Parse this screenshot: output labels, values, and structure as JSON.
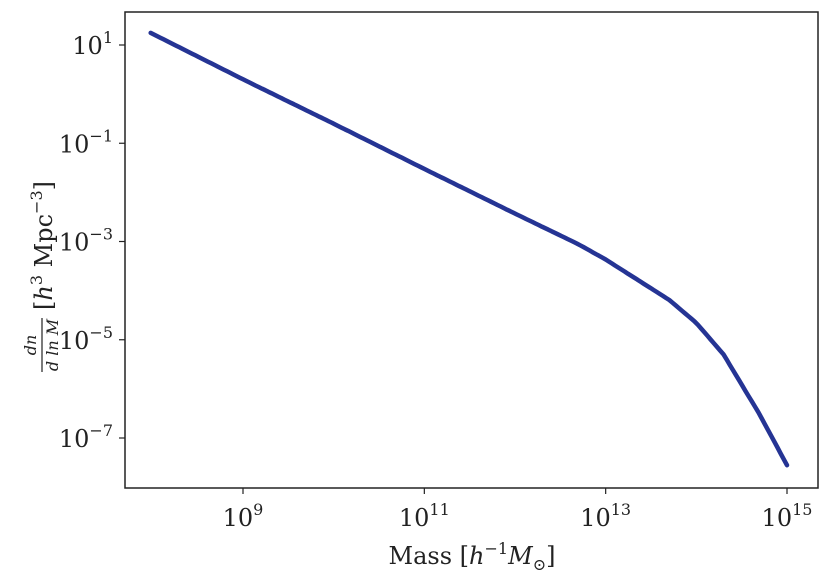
{
  "chart_data": {
    "type": "line",
    "title": "",
    "xlabel": {
      "prefix": "Mass [",
      "var": "h",
      "sup": "−1",
      "var2": "M",
      "sub": "⊙",
      "suffix": "]"
    },
    "ylabel": {
      "numerator": "dn",
      "denominator": "d ln M",
      "prefix": "[",
      "var": "h",
      "sup": "3",
      "unit": " Mpc",
      "sup2": "−3",
      "suffix": "]"
    },
    "x_scale": "log",
    "y_scale": "log",
    "xlim": [
      400000000.0,
      2000000000000000.0
    ],
    "ylim": [
      1e-08,
      50
    ],
    "x_ticks": [
      {
        "value": 1000000000.0,
        "base": "10",
        "exp": "9"
      },
      {
        "value": 100000000000.0,
        "base": "10",
        "exp": "11"
      },
      {
        "value": 10000000000000.0,
        "base": "10",
        "exp": "13"
      },
      {
        "value": 1000000000000000.0,
        "base": "10",
        "exp": "15"
      }
    ],
    "y_ticks": [
      {
        "value": 10,
        "base": "10",
        "exp": "1"
      },
      {
        "value": 0.1,
        "base": "10",
        "exp": "−1"
      },
      {
        "value": 0.001,
        "base": "10",
        "exp": "−3"
      },
      {
        "value": 1e-05,
        "base": "10",
        "exp": "−5"
      },
      {
        "value": 1e-07,
        "base": "10",
        "exp": "−7"
      }
    ],
    "grid": false,
    "series": [
      {
        "color": "#253494",
        "x": [
          100000000.0,
          1000000000.0,
          10000000000.0,
          100000000000.0,
          1000000000000.0,
          5000000000000.0,
          10000000000000.0,
          50000000000000.0,
          100000000000000.0,
          200000000000000.0,
          500000000000000.0,
          1000000000000000.0
        ],
        "y": [
          17,
          2.0,
          0.25,
          0.03,
          0.0037,
          0.00088,
          0.00043,
          6.5e-05,
          2.2e-05,
          5e-06,
          3e-07,
          2.8e-08
        ]
      }
    ]
  }
}
